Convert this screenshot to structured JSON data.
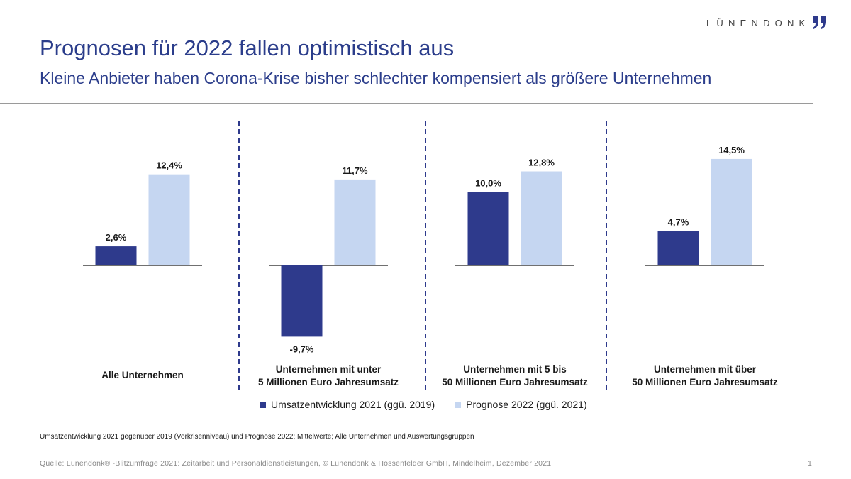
{
  "brand": {
    "name": "LÜNENDONK"
  },
  "header": {
    "title": "Prognosen für 2022 fallen optimistisch aus",
    "subtitle": "Kleine Anbieter haben Corona-Krise bisher schlechter kompensiert als größere Unternehmen"
  },
  "colors": {
    "series1": "#2e3a8c",
    "series2": "#c5d6f1",
    "divider": "#2e3a8c",
    "baseline": "#1a1a1a"
  },
  "chart_data": {
    "type": "bar",
    "title": "Prognosen für 2022 fallen optimistisch aus",
    "categories": [
      [
        "Alle Unternehmen"
      ],
      [
        "Unternehmen mit unter",
        "5 Millionen Euro Jahresumsatz"
      ],
      [
        "Unternehmen mit 5 bis",
        "50 Millionen Euro Jahresumsatz"
      ],
      [
        "Unternehmen mit über",
        "50 Millionen Euro Jahresumsatz"
      ]
    ],
    "series": [
      {
        "name": "Umsatzentwicklung 2021 (ggü. 2019)",
        "values": [
          2.6,
          -9.7,
          10.0,
          4.7
        ],
        "labels": [
          "2,6%",
          "-9,7%",
          "10,0%",
          "4,7%"
        ]
      },
      {
        "name": "Prognose 2022 (ggü. 2021)",
        "values": [
          12.4,
          11.7,
          12.8,
          14.5
        ],
        "labels": [
          "12,4%",
          "11,7%",
          "12,8%",
          "14,5%"
        ]
      }
    ],
    "unit": "%",
    "legend": "bottom-center"
  },
  "footnote": "Umsatzentwicklung 2021 gegenüber 2019 (Vorkrisenniveau) und Prognose 2022; Mittelwerte; Alle Unternehmen und Auswertungsgruppen",
  "footer": {
    "source": "Quelle: Lünendonk® -Blitzumfrage  2021: Zeitarbeit und Personaldienstleistungen,  © Lünendonk  & Hossenfelder GmbH, Mindelheim, Dezember 2021",
    "page": "1"
  }
}
